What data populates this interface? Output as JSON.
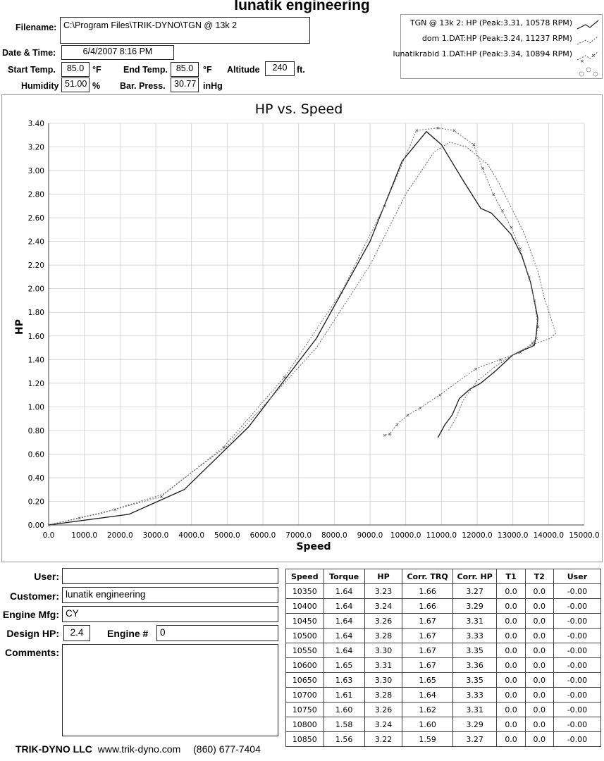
{
  "header": {
    "title": "lunatik engineering",
    "filename_label": "Filename:",
    "filename": "C:\\Program Files\\TRIK-DYNO\\TGN @ 13k 2",
    "datetime_label": "Date & Time:",
    "datetime": "6/4/2007 8:16 PM",
    "start_temp_label": "Start Temp.",
    "start_temp": "85.0",
    "start_temp_unit": "°F",
    "end_temp_label": "End Temp.",
    "end_temp": "85.0",
    "end_temp_unit": "°F",
    "altitude_label": "Altitude",
    "altitude": "240",
    "altitude_unit": "ft.",
    "humidity_label": "Humidity",
    "humidity": "51.00",
    "humidity_unit": "%",
    "baro_label": "Bar. Press.",
    "baro": "30.77",
    "baro_unit": "inHg"
  },
  "legend": [
    {
      "label": "TGN @ 13k 2: HP (Peak:3.31, 10578 RPM)",
      "style": "solid"
    },
    {
      "label": "dom 1.DAT:HP (Peak:3.24, 11237 RPM)",
      "style": "dotted"
    },
    {
      "label": "lunatikrabid 1.DAT:HP (Peak:3.34, 10894 RPM)",
      "style": "marker"
    }
  ],
  "chart_data": {
    "type": "line",
    "title": "HP vs. Speed",
    "xlabel": "Speed",
    "ylabel": "HP",
    "xlim": [
      0,
      15000
    ],
    "ylim": [
      0,
      3.4
    ],
    "xticks": [
      "0.0",
      "1000.0",
      "2000.0",
      "3000.0",
      "4000.0",
      "5000.0",
      "6000.0",
      "7000.0",
      "8000.0",
      "9000.0",
      "10000.0",
      "11000.0",
      "12000.0",
      "13000.0",
      "14000.0",
      "15000.0"
    ],
    "yticks": [
      "0.00",
      "0.20",
      "0.40",
      "0.60",
      "0.80",
      "1.00",
      "1.20",
      "1.40",
      "1.60",
      "1.80",
      "2.00",
      "2.20",
      "2.40",
      "2.60",
      "2.80",
      "3.00",
      "3.20",
      "3.40"
    ],
    "grid": true,
    "series": [
      {
        "name": "TGN @ 13k 2: HP",
        "style": "solid",
        "x": [
          0,
          2250,
          3800,
          5600,
          7500,
          9000,
          9900,
          10578,
          11000,
          11600,
          12100,
          12400,
          12650,
          12950,
          13250,
          13500,
          13700,
          13650,
          13600,
          13000,
          12500,
          12100,
          11800,
          11500,
          11300,
          11100,
          10900
        ],
        "y": [
          0,
          0.09,
          0.3,
          0.83,
          1.58,
          2.4,
          3.08,
          3.33,
          3.22,
          2.92,
          2.68,
          2.64,
          2.56,
          2.46,
          2.28,
          2.05,
          1.75,
          1.6,
          1.52,
          1.44,
          1.3,
          1.2,
          1.15,
          1.07,
          0.93,
          0.85,
          0.74
        ]
      },
      {
        "name": "dom 1.DAT:HP",
        "style": "dotted",
        "x": [
          0,
          1500,
          3200,
          5000,
          7500,
          9000,
          10000,
          10800,
          11237,
          11700,
          12300,
          12600,
          12900,
          13300,
          13700,
          13900,
          14100,
          14200,
          14050,
          13500,
          13000,
          12500,
          12000,
          11600,
          11400,
          11200
        ],
        "y": [
          0,
          0.1,
          0.26,
          0.67,
          1.5,
          2.2,
          2.8,
          3.16,
          3.24,
          3.2,
          3.05,
          2.9,
          2.72,
          2.48,
          2.15,
          1.9,
          1.72,
          1.62,
          1.58,
          1.52,
          1.44,
          1.34,
          1.22,
          1.05,
          0.9,
          0.8
        ]
      },
      {
        "name": "lunatikrabid 1.DAT:HP",
        "style": "marker",
        "x": [
          0,
          850,
          1850,
          3150,
          4900,
          6600,
          8200,
          9400,
          10300,
          10894,
          11350,
          11900,
          12150,
          12450,
          12700,
          12950,
          13200,
          13450,
          13600,
          13700,
          13650,
          13550,
          13200,
          12650,
          11950,
          10950,
          10400,
          10050,
          9750,
          9550,
          9400
        ],
        "y": [
          0,
          0.06,
          0.13,
          0.24,
          0.66,
          1.25,
          1.97,
          2.7,
          3.34,
          3.36,
          3.34,
          3.22,
          3.02,
          2.8,
          2.66,
          2.52,
          2.34,
          2.1,
          1.9,
          1.68,
          1.58,
          1.54,
          1.46,
          1.4,
          1.32,
          1.1,
          0.99,
          0.93,
          0.85,
          0.77,
          0.76
        ]
      }
    ]
  },
  "info": {
    "user_label": "User:",
    "user": "",
    "customer_label": "Customer:",
    "customer": "lunatik engineering",
    "engine_mfg_label": "Engine Mfg:",
    "engine_mfg": "CY",
    "design_hp_label": "Design HP:",
    "design_hp": "2.4",
    "engine_num_label": "Engine #",
    "engine_num": "0",
    "comments_label": "Comments:",
    "comments": ""
  },
  "table": {
    "headers": [
      "Speed",
      "Torque",
      "HP",
      "Corr. TRQ",
      "Corr. HP",
      "T1",
      "T2",
      "User"
    ],
    "rows": [
      [
        "10350",
        "1.64",
        "3.23",
        "1.66",
        "3.27",
        "0.0",
        "0.0",
        "-0.00"
      ],
      [
        "10400",
        "1.64",
        "3.24",
        "1.66",
        "3.29",
        "0.0",
        "0.0",
        "-0.00"
      ],
      [
        "10450",
        "1.64",
        "3.26",
        "1.67",
        "3.31",
        "0.0",
        "0.0",
        "-0.00"
      ],
      [
        "10500",
        "1.64",
        "3.28",
        "1.67",
        "3.33",
        "0.0",
        "0.0",
        "-0.00"
      ],
      [
        "10550",
        "1.64",
        "3.30",
        "1.67",
        "3.35",
        "0.0",
        "0.0",
        "-0.00"
      ],
      [
        "10600",
        "1.65",
        "3.31",
        "1.67",
        "3.36",
        "0.0",
        "0.0",
        "-0.00"
      ],
      [
        "10650",
        "1.63",
        "3.30",
        "1.65",
        "3.35",
        "0.0",
        "0.0",
        "-0.00"
      ],
      [
        "10700",
        "1.61",
        "3.28",
        "1.64",
        "3.33",
        "0.0",
        "0.0",
        "-0.00"
      ],
      [
        "10750",
        "1.60",
        "3.26",
        "1.62",
        "3.31",
        "0.0",
        "0.0",
        "-0.00"
      ],
      [
        "10800",
        "1.58",
        "3.24",
        "1.60",
        "3.29",
        "0.0",
        "0.0",
        "-0.00"
      ],
      [
        "10850",
        "1.56",
        "3.22",
        "1.59",
        "3.27",
        "0.0",
        "0.0",
        "-0.00"
      ]
    ]
  },
  "footer": {
    "company": "TRIK-DYNO LLC",
    "website": "www.trik-dyno.com",
    "phone": "(860) 677-7404"
  }
}
